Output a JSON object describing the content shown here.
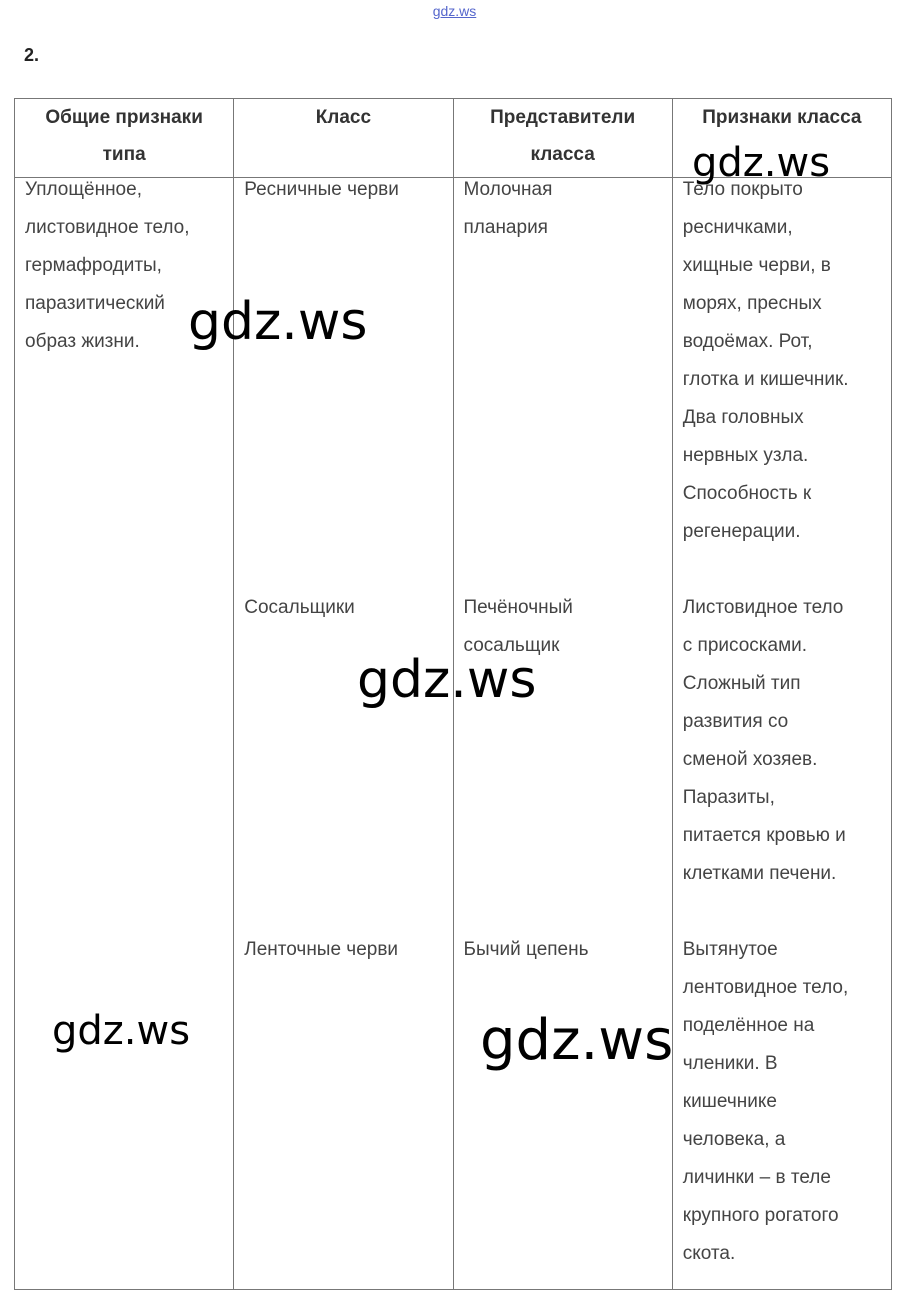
{
  "header": {
    "link": "gdz.ws",
    "number": "2."
  },
  "table": {
    "columns": [
      [
        "Общие признаки",
        "типа"
      ],
      [
        "Класс"
      ],
      [
        "Представители",
        "класса"
      ],
      [
        "Признаки класса"
      ]
    ],
    "rows": [
      [
        [
          "Уплощённое,",
          "листовидное тело,",
          "гермафродиты,",
          "паразитический",
          "образ жизни."
        ],
        [
          "Ресничные черви"
        ],
        [
          "Молочная",
          "планария"
        ],
        [
          "Тело покрыто",
          "ресничками,",
          "хищные черви, в",
          "морях, пресных",
          "водоёмах. Рот,",
          "глотка и кишечник.",
          "Два головных",
          "нервных узла.",
          "Способность к",
          "регенерации."
        ]
      ],
      [
        [],
        [
          "Сосальщики"
        ],
        [
          "Печёночный",
          "сосальщик"
        ],
        [
          "Листовидное тело",
          "с присосками.",
          "Сложный тип",
          "развития со",
          "сменой хозяев.",
          "Паразиты,",
          "питается кровью и",
          "клетками печени."
        ]
      ],
      [
        [],
        [
          "Ленточные черви"
        ],
        [
          "Бычий цепень"
        ],
        [
          "Вытянутое",
          "лентовидное тело,",
          "поделённое на",
          "членики. В",
          "кишечнике",
          "человека, а",
          "личинки – в теле",
          "крупного рогатого",
          "скота."
        ]
      ]
    ]
  },
  "watermarks": [
    "gdz.ws",
    "gdz.ws",
    "gdz.ws",
    "gdz.ws",
    "gdz.ws"
  ]
}
